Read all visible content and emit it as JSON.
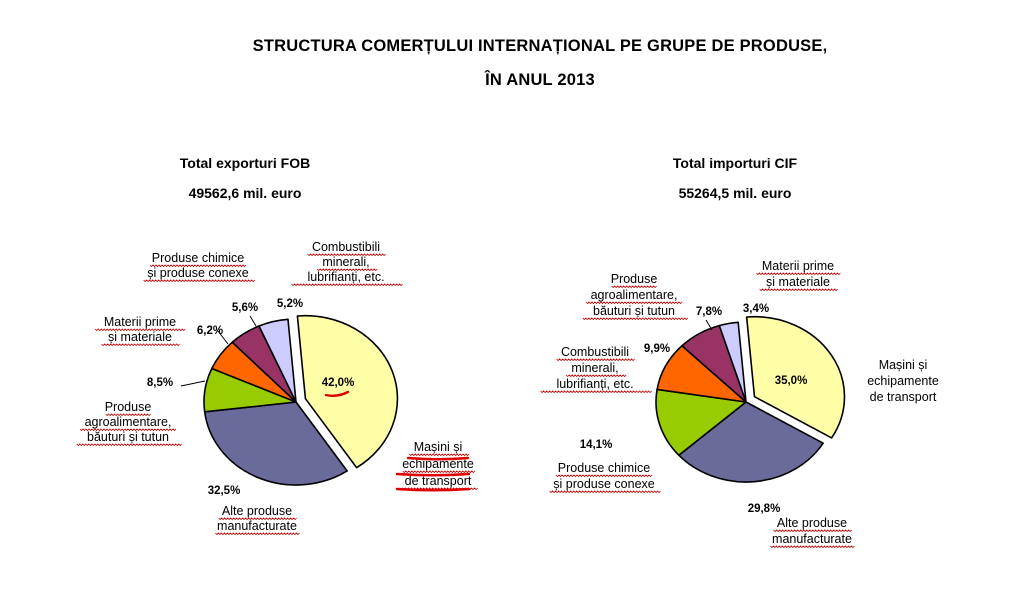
{
  "page": {
    "title_line1": "STRUCTURA COMERȚULUI INTERNAȚIONAL PE GRUPE DE PRODUSE,",
    "title_line2": "ÎN ANUL 2013"
  },
  "chart_data": [
    {
      "type": "pie",
      "title": "Total exporturi FOB",
      "subtitle": "49562,6 mil. euro",
      "slices": [
        {
          "name": "Mașini și echipamente de transport",
          "lines": [
            "Mașini și",
            "echipamente",
            "de transport"
          ],
          "value": 42.0,
          "label": "42,0%",
          "color": "#ffffa8"
        },
        {
          "name": "Alte produse manufacturate",
          "lines": [
            "Alte produse",
            "manufacturate"
          ],
          "value": 32.5,
          "label": "32,5%",
          "color": "#6b6b9b"
        },
        {
          "name": "Produse agroalimentare, băuturi și tutun",
          "lines": [
            "Produse",
            "agroalimentare,",
            "băuturi și tutun"
          ],
          "value": 8.5,
          "label": "8,5%",
          "color": "#99cc00"
        },
        {
          "name": "Materii prime și materiale",
          "lines": [
            "Materii  prime",
            "și materiale"
          ],
          "value": 6.2,
          "label": "6,2%",
          "color": "#ff6600"
        },
        {
          "name": "Produse chimice și produse conexe",
          "lines": [
            "Produse chimice",
            "și produse conexe"
          ],
          "value": 5.6,
          "label": "5,6%",
          "color": "#993366"
        },
        {
          "name": "Combustibili minerali, lubrifianți, etc.",
          "lines": [
            "Combustibili",
            "minerali,",
            "lubrifianți, etc."
          ],
          "value": 5.2,
          "label": "5,2%",
          "color": "#ccccff"
        }
      ]
    },
    {
      "type": "pie",
      "title": "Total importuri  CIF",
      "subtitle": "55264,5 mil. euro",
      "slices": [
        {
          "name": "Mașini și echipamente de transport",
          "lines": [
            "Mașini și",
            "echipamente",
            "de transport"
          ],
          "value": 35.0,
          "label": "35,0%",
          "color": "#ffffa8"
        },
        {
          "name": "Alte produse manufacturate",
          "lines": [
            "Alte produse",
            "manufacturate"
          ],
          "value": 29.8,
          "label": "29,8%",
          "color": "#6b6b9b"
        },
        {
          "name": "Produse chimice și produse conexe",
          "lines": [
            "Produse chimice",
            "și produse conexe"
          ],
          "value": 14.1,
          "label": "14,1%",
          "color": "#99cc00"
        },
        {
          "name": "Combustibili minerali, lubrifianți, etc.",
          "lines": [
            "Combustibili",
            "minerali,",
            "lubrifianți, etc."
          ],
          "value": 9.9,
          "label": "9,9%",
          "color": "#ff6600"
        },
        {
          "name": "Produse agroalimentare, băuturi și tutun",
          "lines": [
            "Produse",
            "agroalimentare,",
            "băuturi și tutun"
          ],
          "value": 7.8,
          "label": "7,8%",
          "color": "#993366"
        },
        {
          "name": "Materii prime și materiale",
          "lines": [
            "Materii prime",
            "și materiale"
          ],
          "value": 3.4,
          "label": "3,4%",
          "color": "#ccccff"
        }
      ]
    }
  ]
}
